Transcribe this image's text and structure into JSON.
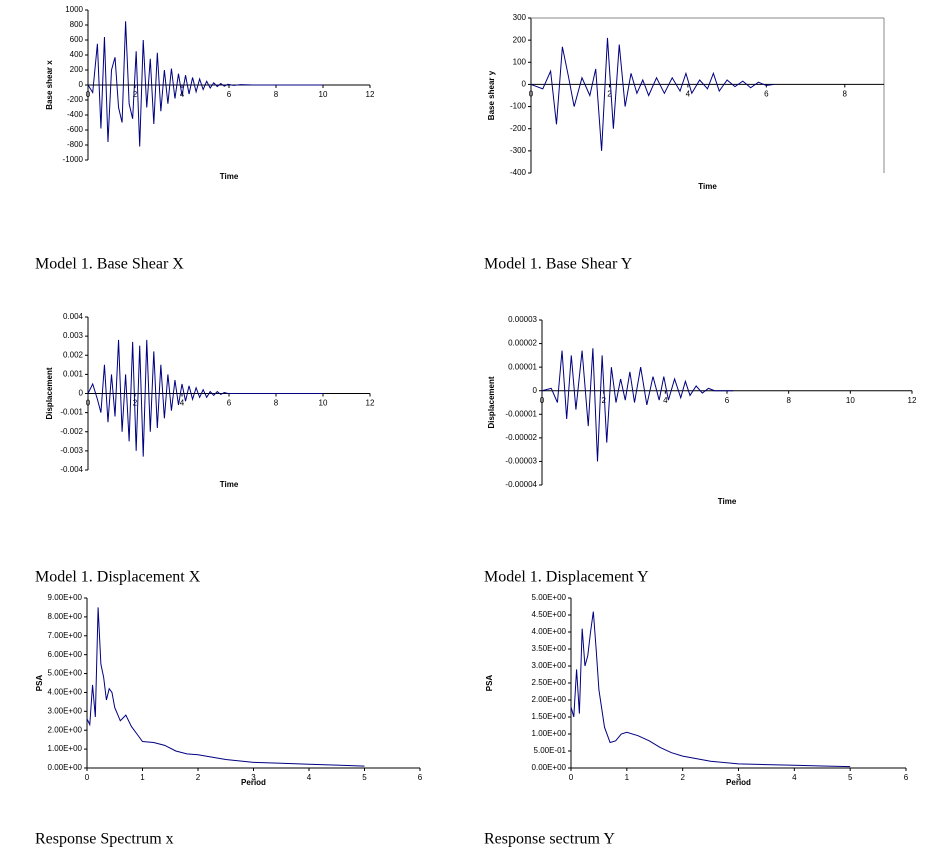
{
  "chart_data": [
    {
      "type": "line",
      "caption": "Model 1. Base Shear X",
      "xlabel": "Time",
      "ylabel": "Base shear x",
      "xlim": [
        0,
        12
      ],
      "xticks": [
        0,
        2,
        4,
        6,
        8,
        10,
        12
      ],
      "ylim": [
        -1000,
        1000
      ],
      "yticks": [
        -1000,
        -800,
        -600,
        -400,
        -200,
        0,
        200,
        400,
        600,
        800,
        1000
      ],
      "x": [
        0,
        0.2,
        0.4,
        0.55,
        0.7,
        0.85,
        1.0,
        1.15,
        1.3,
        1.45,
        1.6,
        1.75,
        1.9,
        2.05,
        2.2,
        2.35,
        2.5,
        2.65,
        2.8,
        2.95,
        3.1,
        3.25,
        3.4,
        3.55,
        3.7,
        3.85,
        4.0,
        4.15,
        4.3,
        4.45,
        4.6,
        4.75,
        4.9,
        5.05,
        5.2,
        5.35,
        5.5,
        5.65,
        5.8,
        5.95,
        6.2,
        6.5,
        7,
        8,
        9,
        10
      ],
      "series": [
        {
          "color": "#000080",
          "values": [
            0,
            -100,
            550,
            -580,
            640,
            -760,
            200,
            370,
            -300,
            -500,
            850,
            -250,
            -450,
            450,
            -820,
            600,
            -300,
            350,
            -520,
            430,
            -350,
            200,
            -250,
            220,
            -180,
            150,
            -140,
            130,
            -120,
            100,
            -90,
            80,
            -60,
            50,
            -40,
            30,
            -20,
            20,
            -15,
            10,
            -5,
            5,
            0,
            0,
            0,
            0
          ]
        }
      ]
    },
    {
      "type": "line",
      "caption": "Model 1. Base Shear Y",
      "xlabel": "Time",
      "ylabel": "Base shear y",
      "xlim": [
        0,
        9
      ],
      "xticks": [
        0,
        2,
        4,
        6,
        8
      ],
      "ylim": [
        -400,
        300
      ],
      "yticks": [
        -400,
        -300,
        -200,
        -100,
        0,
        100,
        200,
        300
      ],
      "x": [
        0,
        0.3,
        0.5,
        0.65,
        0.8,
        0.95,
        1.1,
        1.3,
        1.5,
        1.65,
        1.8,
        1.95,
        2.1,
        2.25,
        2.4,
        2.55,
        2.7,
        2.85,
        3.0,
        3.2,
        3.4,
        3.6,
        3.8,
        3.95,
        4.1,
        4.3,
        4.5,
        4.65,
        4.8,
        5.0,
        5.2,
        5.4,
        5.6,
        5.8,
        6.0,
        6.2
      ],
      "series": [
        {
          "color": "#000080",
          "values": [
            0,
            -20,
            60,
            -180,
            170,
            40,
            -100,
            30,
            -50,
            70,
            -300,
            210,
            -200,
            180,
            -100,
            50,
            -40,
            20,
            -50,
            30,
            -40,
            30,
            -30,
            50,
            -40,
            20,
            -20,
            50,
            -30,
            20,
            -10,
            15,
            -15,
            10,
            -5,
            0
          ]
        }
      ]
    },
    {
      "type": "line",
      "caption": "Model 1. Displacement X",
      "xlabel": "Time",
      "ylabel": "Displacement",
      "xlim": [
        0,
        12
      ],
      "xticks": [
        0,
        2,
        4,
        6,
        8,
        10,
        12
      ],
      "ylim": [
        -0.004,
        0.004
      ],
      "yticks": [
        -0.004,
        -0.003,
        -0.002,
        -0.001,
        0,
        0.001,
        0.002,
        0.003,
        0.004
      ],
      "x": [
        0,
        0.2,
        0.4,
        0.55,
        0.7,
        0.85,
        1.0,
        1.15,
        1.3,
        1.45,
        1.6,
        1.75,
        1.9,
        2.05,
        2.2,
        2.35,
        2.5,
        2.65,
        2.8,
        2.95,
        3.1,
        3.25,
        3.4,
        3.55,
        3.7,
        3.85,
        4.0,
        4.15,
        4.3,
        4.45,
        4.6,
        4.75,
        4.9,
        5.05,
        5.2,
        5.35,
        5.5,
        5.65,
        5.8,
        5.95,
        6.2,
        6.5,
        7,
        8,
        9,
        10
      ],
      "series": [
        {
          "color": "#000080",
          "values": [
            0,
            0.0005,
            -0.0003,
            -0.001,
            0.0015,
            -0.0015,
            0.001,
            -0.0012,
            0.0028,
            -0.002,
            0.001,
            -0.0025,
            0.0027,
            -0.003,
            0.0025,
            -0.0033,
            0.0028,
            -0.002,
            0.0022,
            -0.0018,
            0.0015,
            -0.0013,
            0.001,
            -0.0009,
            0.0007,
            -0.0006,
            0.0005,
            -0.0004,
            0.0004,
            -0.0003,
            0.0003,
            -0.0002,
            0.0002,
            -0.0002,
            0.0001,
            -0.0001,
            0.0001,
            -5e-05,
            5e-05,
            0,
            0,
            0,
            0,
            0,
            0,
            0
          ]
        }
      ]
    },
    {
      "type": "line",
      "caption": "Model 1. Displacement Y",
      "xlabel": "Time",
      "ylabel": "Displacement",
      "xlim": [
        0,
        12
      ],
      "xticks": [
        0,
        2,
        4,
        6,
        8,
        10,
        12
      ],
      "ylim": [
        -4e-05,
        3e-05
      ],
      "yticks": [
        -4e-05,
        -3e-05,
        -2e-05,
        -1e-05,
        0,
        1e-05,
        2e-05,
        3e-05
      ],
      "x": [
        0,
        0.3,
        0.5,
        0.65,
        0.8,
        0.95,
        1.1,
        1.3,
        1.5,
        1.65,
        1.8,
        1.95,
        2.1,
        2.25,
        2.4,
        2.55,
        2.7,
        2.85,
        3.0,
        3.2,
        3.4,
        3.6,
        3.8,
        3.95,
        4.1,
        4.3,
        4.5,
        4.65,
        4.8,
        5.0,
        5.2,
        5.4,
        5.6,
        5.8,
        6.0,
        6.2
      ],
      "series": [
        {
          "color": "#000080",
          "values": [
            0,
            1e-06,
            -5e-06,
            1.7e-05,
            -1.2e-05,
            1.5e-05,
            -8e-06,
            1.7e-05,
            -1.5e-05,
            1.8e-05,
            -3e-05,
            1.5e-05,
            -2.2e-05,
            1e-05,
            -5e-06,
            5e-06,
            -4e-06,
            8e-06,
            -5e-06,
            1e-05,
            -6e-06,
            6e-06,
            -4e-06,
            6e-06,
            -4e-06,
            5e-06,
            -3e-06,
            4e-06,
            -2e-06,
            2e-06,
            -1e-06,
            1e-06,
            0,
            0,
            0,
            0
          ]
        }
      ]
    },
    {
      "type": "line",
      "caption": "Response Spectrum x",
      "xlabel": "Period",
      "ylabel": "PSA",
      "xlim": [
        0,
        6
      ],
      "xticks": [
        0,
        1,
        2,
        3,
        4,
        5,
        6
      ],
      "ylim": [
        0,
        9
      ],
      "yticks": [
        {
          "value": 0,
          "label": "0.00E+00"
        },
        {
          "value": 1,
          "label": "1.00E+00"
        },
        {
          "value": 2,
          "label": "2.00E+00"
        },
        {
          "value": 3,
          "label": "3.00E+00"
        },
        {
          "value": 4,
          "label": "4.00E+00"
        },
        {
          "value": 5,
          "label": "5.00E+00"
        },
        {
          "value": 6,
          "label": "6.00E+00"
        },
        {
          "value": 7,
          "label": "7.00E+00"
        },
        {
          "value": 8,
          "label": "8.00E+00"
        },
        {
          "value": 9,
          "label": "9.00E+00"
        }
      ],
      "x": [
        0,
        0.05,
        0.1,
        0.15,
        0.2,
        0.25,
        0.3,
        0.35,
        0.4,
        0.45,
        0.5,
        0.6,
        0.7,
        0.8,
        0.9,
        1.0,
        1.2,
        1.4,
        1.6,
        1.8,
        2.0,
        2.5,
        3,
        3.5,
        4,
        4.5,
        5
      ],
      "series": [
        {
          "color": "#000080",
          "values": [
            2.6,
            2.3,
            4.4,
            2.7,
            8.5,
            5.5,
            4.8,
            3.6,
            4.2,
            4.0,
            3.2,
            2.5,
            2.8,
            2.2,
            1.8,
            1.4,
            1.35,
            1.2,
            0.9,
            0.75,
            0.7,
            0.45,
            0.3,
            0.25,
            0.2,
            0.15,
            0.1
          ]
        }
      ]
    },
    {
      "type": "line",
      "caption": "Response sectrum Y",
      "xlabel": "Period",
      "ylabel": "PSA",
      "xlim": [
        0,
        6
      ],
      "xticks": [
        0,
        1,
        2,
        3,
        4,
        5,
        6
      ],
      "ylim": [
        0,
        5
      ],
      "yticks": [
        {
          "value": 0,
          "label": "0.00E+00"
        },
        {
          "value": 0.5,
          "label": "5.00E-01"
        },
        {
          "value": 1,
          "label": "1.00E+00"
        },
        {
          "value": 1.5,
          "label": "1.50E+00"
        },
        {
          "value": 2,
          "label": "2.00E+00"
        },
        {
          "value": 2.5,
          "label": "2.50E+00"
        },
        {
          "value": 3,
          "label": "3.00E+00"
        },
        {
          "value": 3.5,
          "label": "3.50E+00"
        },
        {
          "value": 4,
          "label": "4.00E+00"
        },
        {
          "value": 4.5,
          "label": "4.50E+00"
        },
        {
          "value": 5,
          "label": "5.00E+00"
        }
      ],
      "x": [
        0,
        0.05,
        0.1,
        0.15,
        0.2,
        0.25,
        0.3,
        0.35,
        0.4,
        0.45,
        0.5,
        0.6,
        0.7,
        0.8,
        0.9,
        1.0,
        1.2,
        1.4,
        1.6,
        1.8,
        2.0,
        2.5,
        3,
        3.5,
        4,
        4.5,
        5
      ],
      "series": [
        {
          "color": "#000080",
          "values": [
            1.8,
            1.5,
            2.9,
            1.6,
            4.1,
            3.0,
            3.3,
            4.0,
            4.6,
            3.5,
            2.3,
            1.2,
            0.75,
            0.8,
            1.0,
            1.05,
            0.95,
            0.8,
            0.6,
            0.45,
            0.35,
            0.2,
            0.12,
            0.1,
            0.08,
            0.06,
            0.04
          ]
        }
      ]
    }
  ]
}
